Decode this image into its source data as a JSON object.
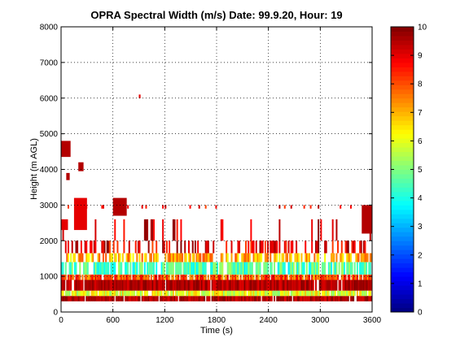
{
  "chart_data": {
    "type": "heatmap",
    "title": "OPRA Spectral Width (m/s)  Date: 99.9.20, Hour: 19",
    "xlabel": "Time (s)",
    "ylabel": "Height (m AGL)",
    "xlim": [
      0,
      3600
    ],
    "ylim": [
      0,
      8000
    ],
    "xticks": [
      "0",
      "600",
      "1200",
      "1800",
      "2400",
      "3000",
      "3600"
    ],
    "yticks": [
      "0",
      "1000",
      "2000",
      "3000",
      "4000",
      "5000",
      "6000",
      "7000",
      "8000"
    ],
    "grid": true,
    "colorbar": {
      "range": [
        0,
        10
      ],
      "ticks": [
        "0",
        "1",
        "2",
        "3",
        "4",
        "5",
        "6",
        "7",
        "8",
        "9",
        "10"
      ],
      "colormap": "jet"
    },
    "layers": [
      {
        "height_range": [
          300,
          450
        ],
        "value_range": [
          9,
          10
        ],
        "coverage": 0.95
      },
      {
        "height_range": [
          450,
          600
        ],
        "value_range": [
          5,
          7
        ],
        "coverage": 0.9
      },
      {
        "height_range": [
          600,
          900
        ],
        "value_range": [
          9,
          10
        ],
        "coverage": 0.95
      },
      {
        "height_range": [
          900,
          1050
        ],
        "value_range": [
          7,
          9
        ],
        "coverage": 0.85
      },
      {
        "height_range": [
          1050,
          1400
        ],
        "value_range": [
          3.5,
          5.5
        ],
        "coverage": 0.75
      },
      {
        "height_range": [
          1400,
          1650
        ],
        "value_range": [
          6,
          8
        ],
        "coverage": 0.65
      },
      {
        "height_range": [
          1650,
          2000
        ],
        "value_range": [
          8,
          10
        ],
        "coverage": 0.4
      },
      {
        "height_range": [
          2000,
          2600
        ],
        "value_range": [
          8.5,
          10
        ],
        "coverage": 0.12
      },
      {
        "height_range": [
          2900,
          3000
        ],
        "value_range": [
          8,
          9.5
        ],
        "coverage": 0.1
      }
    ],
    "isolated_echoes": [
      {
        "time": [
          0,
          110
        ],
        "height": [
          4350,
          4800
        ],
        "value": 9.5
      },
      {
        "time": [
          60,
          100
        ],
        "height": [
          3700,
          3900
        ],
        "value": 9.5
      },
      {
        "time": [
          200,
          260
        ],
        "height": [
          3950,
          4200
        ],
        "value": 9.5
      },
      {
        "time": [
          150,
          300
        ],
        "height": [
          2300,
          3200
        ],
        "value": 9
      },
      {
        "time": [
          600,
          760
        ],
        "height": [
          2700,
          3200
        ],
        "value": 9.5
      },
      {
        "time": [
          900,
          920
        ],
        "height": [
          6000,
          6100
        ],
        "value": 9
      },
      {
        "time": [
          3480,
          3600
        ],
        "height": [
          2200,
          3000
        ],
        "value": 9.5
      },
      {
        "time": [
          0,
          80
        ],
        "height": [
          2300,
          2600
        ],
        "value": 9
      }
    ]
  }
}
